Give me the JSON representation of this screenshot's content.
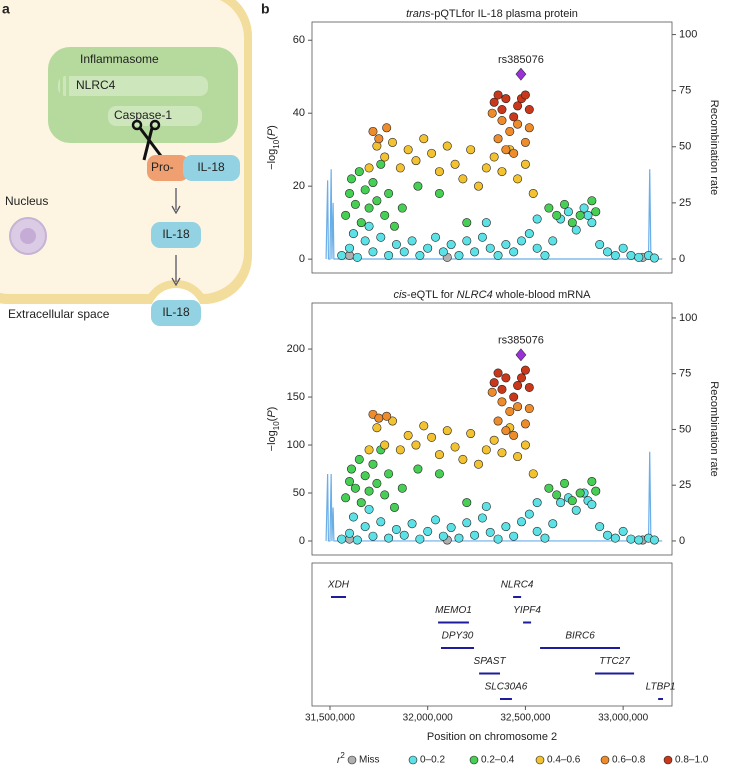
{
  "panel_a": {
    "label": "a",
    "inflammasome": "Inflammasome",
    "nlrc4": "NLRC4",
    "caspase": "Caspase-1",
    "pro": "Pro-",
    "il18": [
      "IL-18",
      "IL-18",
      "IL-18"
    ],
    "nucleus": "Nucleus",
    "extracellular": "Extracellular space"
  },
  "panel_b_label": "b",
  "chart_data": [
    {
      "type": "scatter",
      "title_parts": [
        {
          "text": "trans",
          "style": "italic"
        },
        {
          "text": "-pQTLfor IL-18 plasma protein"
        }
      ],
      "ylabel_parts": [
        {
          "text": "−log"
        },
        {
          "text": "10",
          "style": "sub"
        },
        {
          "text": "("
        },
        {
          "text": "P",
          "style": "italic"
        },
        {
          "text": ")"
        }
      ],
      "y2label": "Recombination rate",
      "legend_title": [
        {
          "text": "r",
          "style": "italic"
        },
        {
          "text": "2",
          "style": "sup"
        }
      ],
      "xlim": [
        31408000,
        33250000
      ],
      "ylim": [
        -3.8,
        65
      ],
      "yticks": [
        0,
        20,
        40,
        60
      ],
      "y2lim": [
        -6.25,
        105.6
      ],
      "y2ticks": [
        0,
        25,
        50,
        75,
        100
      ],
      "series": [
        {
          "name": "Miss",
          "color": "#b0b0b0",
          "x": [
            31600000,
            32100000,
            33100000
          ],
          "values": [
            1,
            0.5,
            0.5
          ]
        },
        {
          "name": "0–0.2",
          "color": "#5ce1e6",
          "x": [
            31560000,
            31600000,
            31640000,
            31680000,
            31720000,
            31760000,
            31800000,
            31840000,
            31880000,
            31920000,
            31960000,
            32000000,
            32040000,
            32080000,
            32120000,
            32160000,
            32200000,
            32240000,
            32280000,
            32320000,
            32360000,
            32400000,
            32440000,
            32480000,
            32520000,
            32560000,
            32600000,
            32640000,
            32680000,
            32720000,
            32760000,
            32800000,
            32820000,
            32840000,
            32880000,
            32920000,
            32960000,
            33000000,
            33040000,
            33080000,
            33130000,
            33160000,
            31620000,
            31700000,
            32300000,
            32560000
          ],
          "values": [
            1,
            3,
            0.5,
            5,
            2,
            6,
            1,
            4,
            2,
            5,
            1,
            3,
            6,
            2,
            4,
            1,
            5,
            2,
            6,
            3,
            1,
            4,
            2,
            5,
            7,
            3,
            1,
            5,
            11,
            13,
            8,
            14,
            12,
            10,
            4,
            2,
            1,
            3,
            1,
            0.5,
            1,
            0.3,
            7,
            9,
            10,
            11
          ]
        },
        {
          "name": "0.2–0.4",
          "color": "#47cf55",
          "x": [
            31580000,
            31600000,
            31610000,
            31630000,
            31650000,
            31660000,
            31680000,
            31700000,
            31720000,
            31740000,
            31760000,
            31780000,
            31800000,
            31830000,
            31870000,
            31950000,
            32060000,
            32200000,
            32620000,
            32660000,
            32700000,
            32740000,
            32780000,
            32840000,
            32860000
          ],
          "values": [
            12,
            18,
            22,
            15,
            24,
            10,
            19,
            14,
            21,
            16,
            26,
            12,
            18,
            9,
            14,
            20,
            18,
            10,
            14,
            12,
            15,
            10,
            12,
            16,
            13
          ]
        },
        {
          "name": "0.4–0.6",
          "color": "#f2c230",
          "x": [
            31780000,
            31820000,
            31860000,
            31900000,
            31940000,
            31980000,
            32020000,
            32060000,
            32100000,
            32140000,
            32180000,
            32220000,
            32260000,
            32300000,
            32340000,
            32380000,
            32420000,
            32460000,
            32500000,
            32540000,
            31740000,
            31700000
          ],
          "values": [
            28,
            32,
            25,
            30,
            27,
            33,
            29,
            24,
            31,
            26,
            22,
            30,
            20,
            25,
            28,
            24,
            30,
            22,
            26,
            18,
            31,
            25
          ]
        },
        {
          "name": "0.6–0.8",
          "color": "#ee8c2c",
          "x": [
            31720000,
            31750000,
            31790000,
            32330000,
            32360000,
            32380000,
            32400000,
            32420000,
            32440000,
            32460000,
            32500000,
            32520000
          ],
          "values": [
            35,
            33,
            36,
            40,
            33,
            38,
            30,
            35,
            29,
            37,
            32,
            36
          ]
        },
        {
          "name": "0.8–1.0",
          "color": "#c9381a",
          "x": [
            32340000,
            32360000,
            32380000,
            32400000,
            32440000,
            32460000,
            32480000,
            32500000,
            32520000
          ],
          "values": [
            43,
            45,
            41,
            44,
            39,
            42,
            44,
            45,
            41
          ]
        }
      ],
      "lead": {
        "label": "rs385076",
        "color": "#9b30d9",
        "x": 32477000,
        "value": 50.7
      },
      "recombination_rate": {
        "axis": "y2",
        "color": "#6aaee8",
        "x": [
          31480000,
          31488000,
          31492000,
          31500000,
          31506000,
          31510000,
          31516000,
          31520000,
          33120000,
          33130000,
          33136000,
          33142000,
          33200000
        ],
        "values": [
          0,
          35,
          0,
          0,
          40,
          0,
          25,
          0,
          0,
          0,
          40,
          0,
          0
        ]
      }
    },
    {
      "type": "scatter",
      "title_parts": [
        {
          "text": "cis",
          "style": "italic"
        },
        {
          "text": "-eQTL for "
        },
        {
          "text": "NLRC4",
          "style": "italic"
        },
        {
          "text": " whole-blood mRNA"
        }
      ],
      "ylabel_parts": [
        {
          "text": "−log"
        },
        {
          "text": "10",
          "style": "sub"
        },
        {
          "text": "("
        },
        {
          "text": "P",
          "style": "italic"
        },
        {
          "text": ")"
        }
      ],
      "y2label": "Recombination rate",
      "xlim": [
        31408000,
        33250000
      ],
      "ylim": [
        -14.6,
        248
      ],
      "yticks": [
        0,
        50,
        100,
        150,
        200
      ],
      "y2lim": [
        -6.3,
        106.7
      ],
      "y2ticks": [
        0,
        25,
        50,
        75,
        100
      ],
      "series": [
        {
          "name": "Miss",
          "color": "#b0b0b0",
          "x": [
            31600000,
            32100000,
            33100000
          ],
          "values": [
            2,
            1,
            1
          ]
        },
        {
          "name": "0–0.2",
          "color": "#5ce1e6",
          "x": [
            31560000,
            31600000,
            31640000,
            31680000,
            31720000,
            31760000,
            31800000,
            31840000,
            31880000,
            31920000,
            31960000,
            32000000,
            32040000,
            32080000,
            32120000,
            32160000,
            32200000,
            32240000,
            32280000,
            32320000,
            32360000,
            32400000,
            32440000,
            32480000,
            32520000,
            32560000,
            32600000,
            32640000,
            32680000,
            32720000,
            32760000,
            32800000,
            32820000,
            32840000,
            32880000,
            32920000,
            32960000,
            33000000,
            33040000,
            33080000,
            33130000,
            33160000,
            31620000,
            31700000,
            32300000,
            32560000
          ],
          "values": [
            2,
            8,
            1,
            15,
            5,
            20,
            3,
            12,
            6,
            18,
            2,
            10,
            22,
            5,
            14,
            3,
            19,
            6,
            24,
            9,
            2,
            15,
            5,
            20,
            28,
            10,
            3,
            18,
            40,
            45,
            32,
            50,
            42,
            38,
            15,
            6,
            3,
            10,
            2,
            1,
            3,
            1,
            25,
            33,
            36,
            40
          ]
        },
        {
          "name": "0.2–0.4",
          "color": "#47cf55",
          "x": [
            31580000,
            31600000,
            31610000,
            31630000,
            31650000,
            31660000,
            31680000,
            31700000,
            31720000,
            31740000,
            31760000,
            31780000,
            31800000,
            31830000,
            31870000,
            31950000,
            32060000,
            32200000,
            32620000,
            32660000,
            32700000,
            32740000,
            32780000,
            32840000,
            32860000
          ],
          "values": [
            45,
            62,
            75,
            55,
            85,
            40,
            68,
            52,
            80,
            60,
            95,
            48,
            70,
            35,
            55,
            75,
            70,
            40,
            55,
            48,
            60,
            42,
            50,
            62,
            52
          ]
        },
        {
          "name": "0.4–0.6",
          "color": "#f2c230",
          "x": [
            31780000,
            31820000,
            31860000,
            31900000,
            31940000,
            31980000,
            32020000,
            32060000,
            32100000,
            32140000,
            32180000,
            32220000,
            32260000,
            32300000,
            32340000,
            32380000,
            32420000,
            32460000,
            32500000,
            32540000,
            31740000,
            31700000
          ],
          "values": [
            100,
            125,
            95,
            110,
            100,
            120,
            108,
            90,
            115,
            98,
            85,
            112,
            80,
            95,
            105,
            92,
            118,
            88,
            100,
            70,
            118,
            95
          ]
        },
        {
          "name": "0.6–0.8",
          "color": "#ee8c2c",
          "x": [
            31720000,
            31750000,
            31790000,
            32330000,
            32360000,
            32380000,
            32400000,
            32420000,
            32440000,
            32460000,
            32500000,
            32520000
          ],
          "values": [
            132,
            128,
            130,
            155,
            125,
            145,
            115,
            135,
            110,
            140,
            122,
            138
          ]
        },
        {
          "name": "0.8–1.0",
          "color": "#c9381a",
          "x": [
            32340000,
            32360000,
            32380000,
            32400000,
            32440000,
            32460000,
            32480000,
            32500000,
            32520000
          ],
          "values": [
            165,
            175,
            158,
            170,
            150,
            162,
            170,
            178,
            160
          ]
        }
      ],
      "lead": {
        "label": "rs385076",
        "color": "#9b30d9",
        "x": 32477000,
        "value": 194
      },
      "recombination_rate": {
        "axis": "y2",
        "color": "#6aaee8",
        "x": [
          31480000,
          31488000,
          31492000,
          31500000,
          31506000,
          31510000,
          31516000,
          31520000,
          33120000,
          33130000,
          33136000,
          33142000,
          33200000
        ],
        "values": [
          0,
          30,
          0,
          0,
          30,
          0,
          15,
          0,
          0,
          0,
          40,
          0,
          0
        ]
      }
    },
    {
      "type": "gene_track",
      "xlim": [
        31408000,
        33250000
      ],
      "xticks": [
        {
          "value": 31500000,
          "label": "31,500,000"
        },
        {
          "value": 32000000,
          "label": "32,000,000"
        },
        {
          "value": 32500000,
          "label": "32,500,000"
        },
        {
          "value": 33000000,
          "label": "33,000,000"
        }
      ],
      "xlabel": "Position on chromosome 2",
      "color": "#1c1c9c",
      "genes": [
        {
          "name": "XDH",
          "start": 31505000,
          "end": 31582000
        },
        {
          "name": "NLRC4",
          "start": 32437000,
          "end": 32478000
        },
        {
          "name": "MEMO1",
          "start": 32053000,
          "end": 32211000
        },
        {
          "name": "YIPF4",
          "start": 32488000,
          "end": 32529000
        },
        {
          "name": "DPY30",
          "start": 32068000,
          "end": 32237000
        },
        {
          "name": "BIRC6",
          "start": 32575000,
          "end": 32984000
        },
        {
          "name": "SPAST",
          "start": 32263000,
          "end": 32370000
        },
        {
          "name": "TTC27",
          "start": 32856000,
          "end": 33056000
        },
        {
          "name": "SLC30A6",
          "start": 32370000,
          "end": 32431000
        },
        {
          "name": "LTBP1",
          "start": 33179000,
          "end": 33204000
        }
      ]
    }
  ]
}
